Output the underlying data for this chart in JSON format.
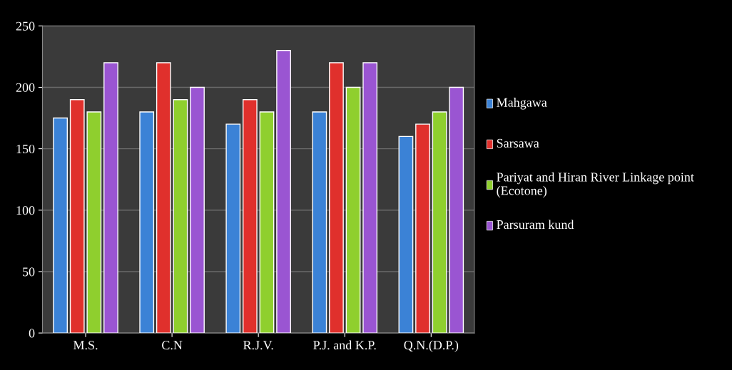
{
  "chart_data": {
    "type": "bar",
    "categories": [
      "M.S.",
      "C.N",
      "R.J.V.",
      "P.J. and K.P.",
      "Q.N.(D.P.)"
    ],
    "series": [
      {
        "name": "Mahgawa",
        "color": "#3b82d6",
        "values": [
          175,
          180,
          170,
          180,
          160
        ]
      },
      {
        "name": "Sarsawa",
        "color": "#e0302c",
        "values": [
          190,
          220,
          190,
          220,
          170
        ]
      },
      {
        "name": "Pariyat and Hiran River Linkage point (Ecotone)",
        "color": "#8fcf2e",
        "values": [
          180,
          190,
          180,
          200,
          180
        ]
      },
      {
        "name": "Parsuram kund",
        "color": "#9a55d2",
        "values": [
          220,
          200,
          230,
          220,
          200
        ]
      }
    ],
    "ylim": [
      0,
      250
    ],
    "yticks": [
      0,
      50,
      100,
      150,
      200,
      250
    ],
    "grid": "y",
    "legend": "right"
  }
}
